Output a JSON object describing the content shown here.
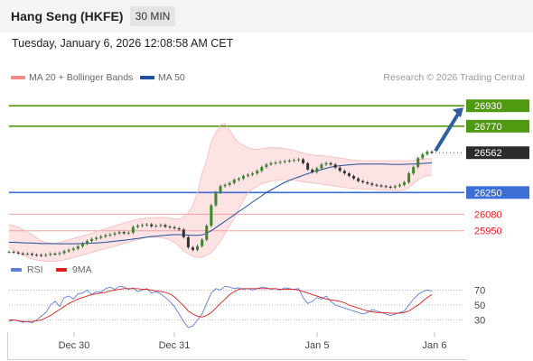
{
  "header": {
    "title": "Hang Seng (HKFE)",
    "timeframe": "30 MIN"
  },
  "timestamp": "Tuesday, January 6, 2026 12:08:58 AM CET",
  "legend": {
    "bb_label": "MA 20 + Bollinger Bands",
    "ma50_label": "MA 50",
    "credit": "Research © 2026 Trading Central"
  },
  "rsi_legend": {
    "rsi_label": "RSI",
    "ma_label": "9MA"
  },
  "chart_data": [
    {
      "type": "candlestick",
      "title": "Hang Seng (HKFE)",
      "timeframe": "30 MIN",
      "x_labels": [
        "Dec 30",
        "Dec 31",
        "Jan 5",
        "Jan 6"
      ],
      "ylim": [
        25750,
        27080
      ],
      "current_price": 26562,
      "levels": [
        {
          "value": 26930,
          "label": "26930",
          "kind": "resistance"
        },
        {
          "value": 26770,
          "label": "26770",
          "kind": "resistance"
        },
        {
          "value": 26250,
          "label": "26250",
          "kind": "pivot"
        },
        {
          "value": 26080,
          "label": "26080",
          "kind": "support"
        },
        {
          "value": 25950,
          "label": "25950",
          "kind": "support"
        }
      ],
      "closes": [
        25785,
        25780,
        25772,
        25768,
        25770,
        25762,
        25760,
        25755,
        25762,
        25770,
        25768,
        25775,
        25790,
        25800,
        25810,
        25828,
        25850,
        25870,
        25885,
        25895,
        25905,
        25915,
        25920,
        25930,
        25940,
        25930,
        25935,
        25980,
        25990,
        25995,
        26000,
        25985,
        25990,
        25995,
        25982,
        25978,
        25970,
        25960,
        25900,
        25820,
        25800,
        25830,
        25880,
        25990,
        26150,
        26250,
        26300,
        26310,
        26325,
        26350,
        26360,
        26380,
        26390,
        26400,
        26420,
        26450,
        26470,
        26480,
        26485,
        26490,
        26495,
        26500,
        26505,
        26510,
        26480,
        26430,
        26410,
        26440,
        26470,
        26480,
        26470,
        26445,
        26420,
        26400,
        26380,
        26360,
        26340,
        26330,
        26320,
        26310,
        26305,
        26300,
        26295,
        26290,
        26300,
        26310,
        26330,
        26400,
        26450,
        26520,
        26550,
        26570,
        26562
      ],
      "bollinger": {
        "upper": [
          26000,
          25990,
          25980,
          25960,
          25940,
          25920,
          25895,
          25870,
          25860,
          25855,
          25850,
          25860,
          25870,
          25880,
          25890,
          25900,
          25910,
          25920,
          25930,
          25945,
          25955,
          25965,
          25980,
          25990,
          26000,
          26010,
          26020,
          26030,
          26040,
          26045,
          26050,
          26050,
          26055,
          26055,
          26055,
          26050,
          26045,
          26040,
          26060,
          26090,
          26150,
          26250,
          26400,
          26500,
          26650,
          26720,
          26780,
          26790,
          26740,
          26680,
          26640,
          26620,
          26600,
          26590,
          26590,
          26595,
          26600,
          26600,
          26600,
          26600,
          26595,
          26590,
          26580,
          26570,
          26560,
          26550,
          26545,
          26540,
          26540,
          26535,
          26530,
          26525,
          26520,
          26515,
          26510,
          26505,
          26500,
          26500,
          26500,
          26500,
          26500,
          26500,
          26500,
          26500,
          26500,
          26500,
          26500,
          26500,
          26500,
          26510,
          26515,
          26515,
          26515
        ],
        "lower": [
          25820,
          25800,
          25780,
          25760,
          25740,
          25730,
          25720,
          25715,
          25710,
          25710,
          25712,
          25715,
          25722,
          25730,
          25740,
          25750,
          25760,
          25770,
          25780,
          25790,
          25800,
          25810,
          25820,
          25830,
          25840,
          25850,
          25860,
          25870,
          25880,
          25890,
          25900,
          25900,
          25900,
          25895,
          25890,
          25880,
          25860,
          25830,
          25790,
          25770,
          25750,
          25740,
          25740,
          25760,
          25780,
          25820,
          25870,
          25930,
          25990,
          26050,
          26120,
          26190,
          26250,
          26280,
          26300,
          26320,
          26330,
          26340,
          26345,
          26350,
          26352,
          26350,
          26345,
          26340,
          26335,
          26330,
          26325,
          26320,
          26315,
          26310,
          26305,
          26300,
          26295,
          26290,
          26285,
          26282,
          26280,
          26278,
          26276,
          26274,
          26272,
          26270,
          26268,
          26266,
          26265,
          26265,
          26270,
          26290,
          26320,
          26350,
          26370,
          26380,
          26380
        ]
      },
      "ma50": [
        25860,
        25860,
        25858,
        25856,
        25855,
        25854,
        25852,
        25850,
        25850,
        25849,
        25849,
        25848,
        25848,
        25848,
        25848,
        25849,
        25850,
        25851,
        25853,
        25855,
        25857,
        25860,
        25864,
        25868,
        25872,
        25876,
        25880,
        25885,
        25890,
        25895,
        25900,
        25905,
        25908,
        25912,
        25915,
        25918,
        25920,
        25920,
        25918,
        25916,
        25914,
        25914,
        25918,
        25930,
        25950,
        25975,
        26000,
        26025,
        26050,
        26075,
        26100,
        26125,
        26150,
        26175,
        26200,
        26225,
        26250,
        26270,
        26290,
        26310,
        26330,
        26345,
        26360,
        26372,
        26385,
        26397,
        26410,
        26420,
        26430,
        26440,
        26448,
        26455,
        26460,
        26464,
        26467,
        26470,
        26472,
        26473,
        26474,
        26474,
        26474,
        26473,
        26472,
        26471,
        26470,
        26470,
        26471,
        26472,
        26474,
        26476,
        26478,
        26480,
        26482
      ],
      "rsi": {
        "levels": [
          70,
          50,
          30
        ],
        "ylim": [
          15,
          85
        ],
        "rsi": [
          28,
          30,
          29,
          27,
          28,
          26,
          30,
          35,
          40,
          50,
          55,
          48,
          60,
          62,
          58,
          65,
          66,
          70,
          64,
          68,
          67,
          72,
          74,
          71,
          75,
          74,
          71,
          73,
          68,
          70,
          72,
          66,
          68,
          65,
          60,
          55,
          48,
          38,
          28,
          20,
          22,
          30,
          38,
          52,
          66,
          72,
          70,
          75,
          74,
          72,
          73,
          71,
          72,
          70,
          72,
          74,
          73,
          71,
          72,
          70,
          73,
          72,
          71,
          72,
          60,
          52,
          55,
          60,
          58,
          62,
          55,
          50,
          48,
          46,
          44,
          42,
          40,
          38,
          40,
          44,
          42,
          40,
          38,
          36,
          38,
          40,
          42,
          50,
          58,
          64,
          68,
          70,
          69
        ],
        "ma9": [
          30,
          30,
          29,
          28,
          28,
          28,
          29,
          30,
          33,
          36,
          40,
          44,
          48,
          52,
          55,
          58,
          60,
          62,
          64,
          65,
          66,
          67,
          69,
          70,
          71,
          72,
          72,
          72,
          72,
          71,
          71,
          70,
          69,
          68,
          67,
          65,
          61,
          55,
          49,
          42,
          38,
          35,
          34,
          36,
          40,
          46,
          52,
          58,
          64,
          68,
          71,
          72,
          72,
          72,
          72,
          72,
          72,
          72,
          72,
          71,
          71,
          71,
          71,
          70,
          68,
          66,
          64,
          62,
          60,
          58,
          57,
          56,
          55,
          53,
          50,
          48,
          46,
          44,
          42,
          41,
          40,
          40,
          40,
          39,
          39,
          39,
          40,
          42,
          46,
          50,
          55,
          60,
          64
        ]
      }
    }
  ]
}
